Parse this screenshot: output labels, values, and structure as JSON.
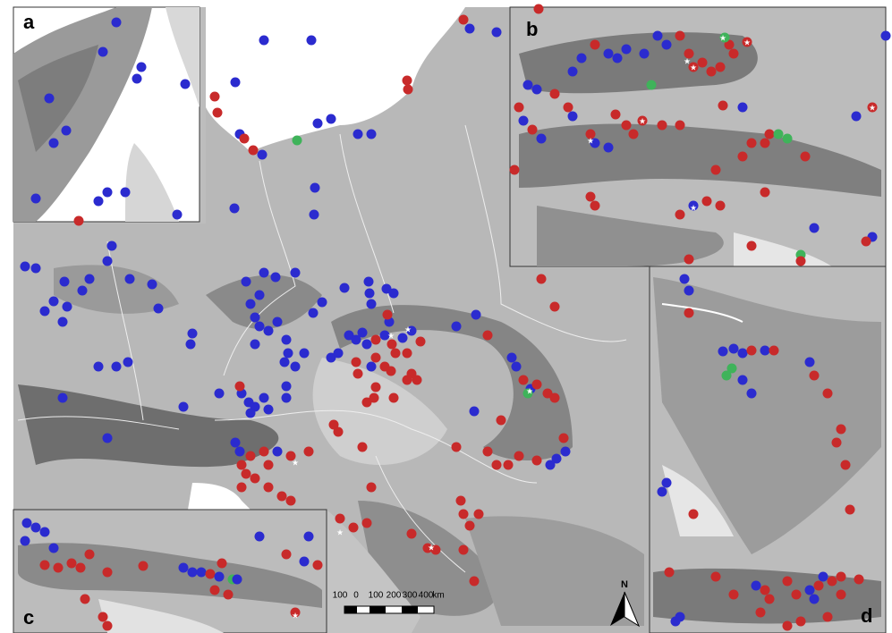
{
  "panel_labels": [
    "a",
    "b",
    "c",
    "d"
  ],
  "north_arrow": "N",
  "scale_bar": {
    "ticks": [
      "100",
      "0",
      "100",
      "200",
      "300",
      "400"
    ],
    "unit": "km"
  }
}
